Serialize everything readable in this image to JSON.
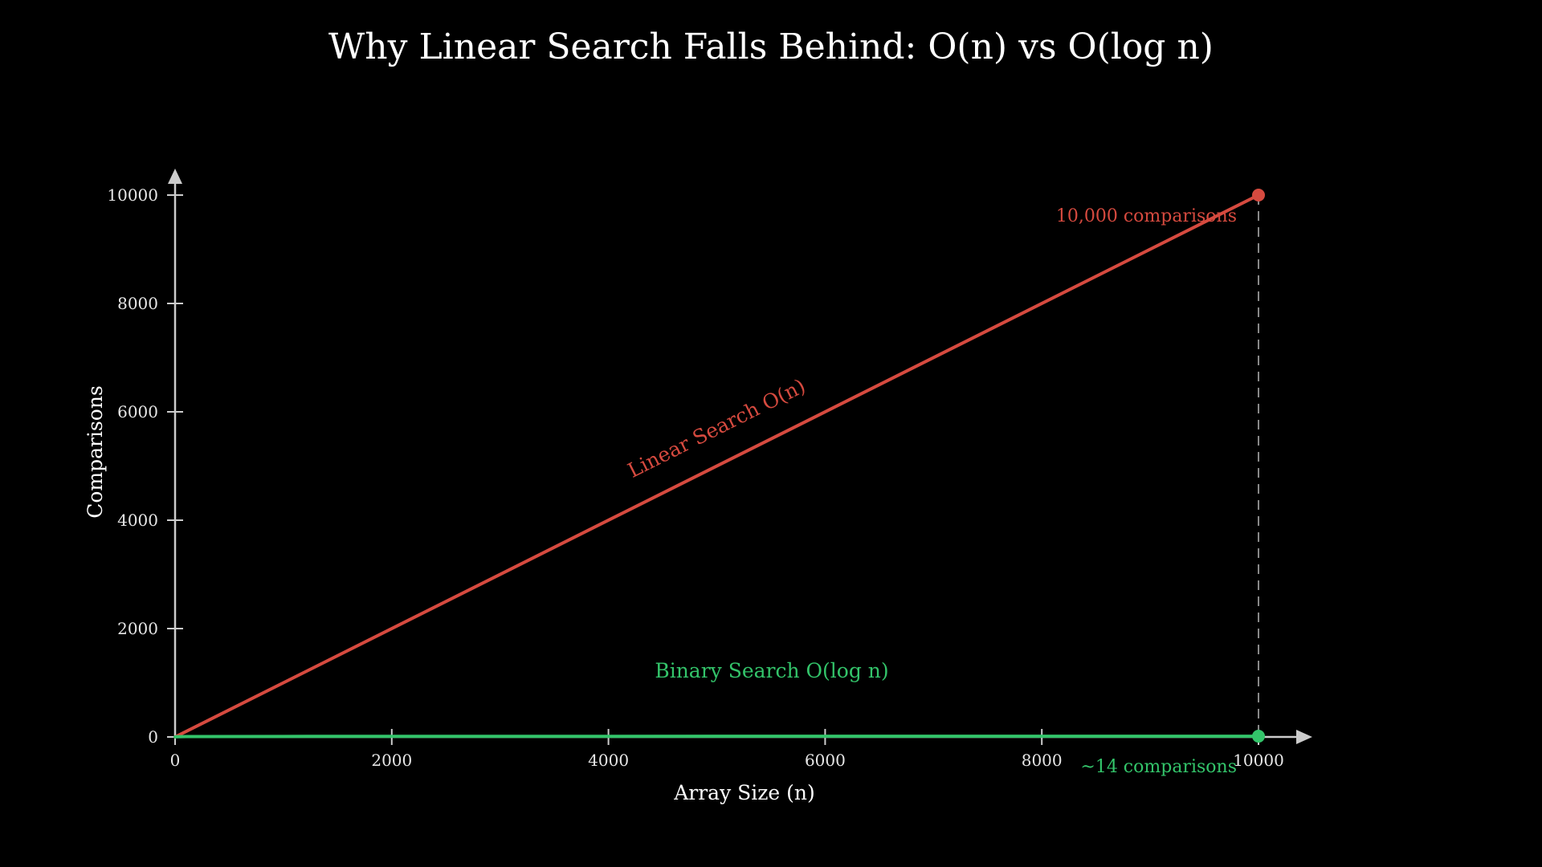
{
  "chart_data": {
    "type": "line",
    "title": "Why Linear Search Falls Behind: O(n) vs O(log n)",
    "xlabel": "Array Size (n)",
    "ylabel": "Comparisons",
    "xlim": [
      0,
      10000
    ],
    "ylim": [
      0,
      10000
    ],
    "x_ticks": [
      0,
      2000,
      4000,
      6000,
      8000,
      10000
    ],
    "y_ticks": [
      0,
      2000,
      4000,
      6000,
      8000,
      10000
    ],
    "grid": false,
    "series": [
      {
        "name": "Linear Search O(n)",
        "color": "#d64a3f",
        "x": [
          0,
          10000
        ],
        "y": [
          0,
          10000
        ]
      },
      {
        "name": "Binary Search O(log n)",
        "color": "#33c46a",
        "x": [
          1,
          10,
          100,
          1000,
          2000,
          4000,
          6000,
          8000,
          10000
        ],
        "y": [
          0,
          3.3,
          6.6,
          10,
          11,
          12,
          12.6,
          13,
          13.3
        ]
      }
    ],
    "markers": [
      {
        "series": "Linear Search O(n)",
        "x": 10000,
        "y": 10000,
        "label": "10,000 comparisons"
      },
      {
        "series": "Binary Search O(log n)",
        "x": 10000,
        "y": 14,
        "label": "~14 comparisons"
      }
    ],
    "reference_line": {
      "x": 10000,
      "style": "dashed",
      "color": "#888888"
    },
    "axis_color": "#cccccc"
  }
}
